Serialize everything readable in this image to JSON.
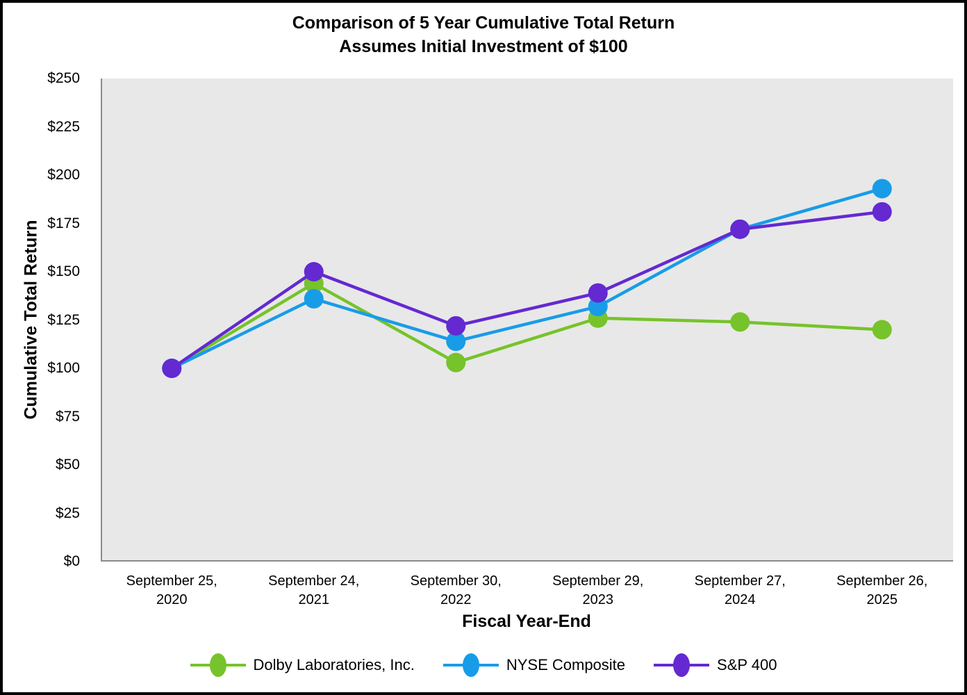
{
  "chart_data": {
    "type": "line",
    "title": "Comparison of 5 Year Cumulative Total Return",
    "subtitle": "Assumes Initial Investment of $100",
    "xlabel": "Fiscal Year-End",
    "ylabel": "Cumulative Total Return",
    "ylim": [
      0,
      250
    ],
    "grid": false,
    "legend_position": "bottom",
    "plot_background": "#e8e8e8",
    "axis_line_color": "#8a8a8a",
    "yticks": [
      {
        "value": 0,
        "label": "$0"
      },
      {
        "value": 25,
        "label": "$25"
      },
      {
        "value": 50,
        "label": "$50"
      },
      {
        "value": 75,
        "label": "$75"
      },
      {
        "value": 100,
        "label": "$100"
      },
      {
        "value": 125,
        "label": "$125"
      },
      {
        "value": 150,
        "label": "$150"
      },
      {
        "value": 175,
        "label": "$175"
      },
      {
        "value": 200,
        "label": "$200"
      },
      {
        "value": 225,
        "label": "$225"
      },
      {
        "value": 250,
        "label": "$250"
      }
    ],
    "categories": [
      {
        "line1": "September 25,",
        "line2": "2020"
      },
      {
        "line1": "September 24,",
        "line2": "2021"
      },
      {
        "line1": "September 30,",
        "line2": "2022"
      },
      {
        "line1": "September 29,",
        "line2": "2023"
      },
      {
        "line1": "September 27,",
        "line2": "2024"
      },
      {
        "line1": "September 26,",
        "line2": "2025"
      }
    ],
    "series": [
      {
        "name": "Dolby Laboratories, Inc.",
        "color": "#76c32b",
        "values": [
          100,
          144,
          103,
          126,
          124,
          120
        ]
      },
      {
        "name": "NYSE Composite",
        "color": "#189ce8",
        "values": [
          100,
          136,
          114,
          132,
          172,
          193
        ]
      },
      {
        "name": "S&P 400",
        "color": "#6429d1",
        "values": [
          100,
          150,
          122,
          139,
          172,
          181
        ]
      }
    ]
  }
}
